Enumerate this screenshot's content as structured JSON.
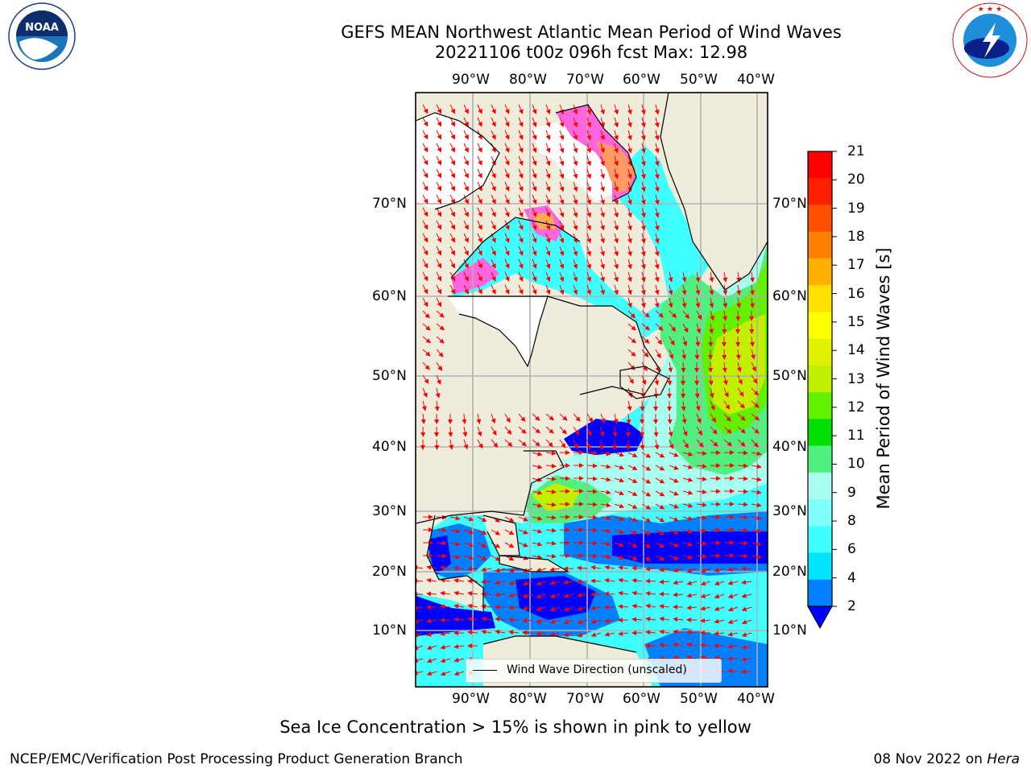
{
  "header": {
    "title_line1": "GEFS MEAN Northwest Atlantic Mean Period of Wind Waves",
    "title_line2": "20221106 t00z 096h fcst   Max: 12.98"
  },
  "logos": {
    "left_text": "NOAA",
    "left_ring_text": "NATIONAL OCEANIC AND ATMOSPHERIC ADMINISTRATION · U.S. DEPARTMENT OF COMMERCE",
    "right_ring_text": "NATIONAL WEATHER SERVICE"
  },
  "map": {
    "lon_ticks": [
      "90°W",
      "80°W",
      "70°W",
      "60°W",
      "50°W",
      "40°W"
    ],
    "lat_ticks_left": [
      "70°N",
      "60°N",
      "50°N",
      "40°N",
      "30°N",
      "20°N",
      "10°N"
    ],
    "lat_ticks_right": [
      "70°N",
      "60°N",
      "50°N",
      "40°N",
      "30°N",
      "20°N",
      "10°N"
    ],
    "legend_label": "Wind Wave Direction (unscaled)",
    "colors": {
      "land": "#efecdc",
      "ice_free_land": "#ffffff",
      "arrow": "#ff0000",
      "grid": "#b0b0b0"
    }
  },
  "colorbar": {
    "title": "Mean Period of Wind Waves [s]",
    "levels": [
      "2",
      "4",
      "6",
      "8",
      "9",
      "10",
      "11",
      "12",
      "13",
      "14",
      "15",
      "16",
      "17",
      "18",
      "19",
      "20",
      "21"
    ],
    "colors": [
      "#0080ff",
      "#00e5ff",
      "#40ffff",
      "#80ffff",
      "#a8fff0",
      "#50f080",
      "#00e000",
      "#60f000",
      "#c0f000",
      "#e0f000",
      "#ffff00",
      "#ffe000",
      "#ffb000",
      "#ff8000",
      "#ff5000",
      "#ff2000",
      "#ff0000"
    ],
    "extend_color": "#0000ff"
  },
  "notes": {
    "sea_ice": "Sea Ice Concentration > 15% is shown in pink to yellow",
    "credit": "NCEP/EMC/Verification Post Processing Product Generation Branch",
    "date_prefix": "08 Nov 2022 on ",
    "host": "Hera"
  }
}
